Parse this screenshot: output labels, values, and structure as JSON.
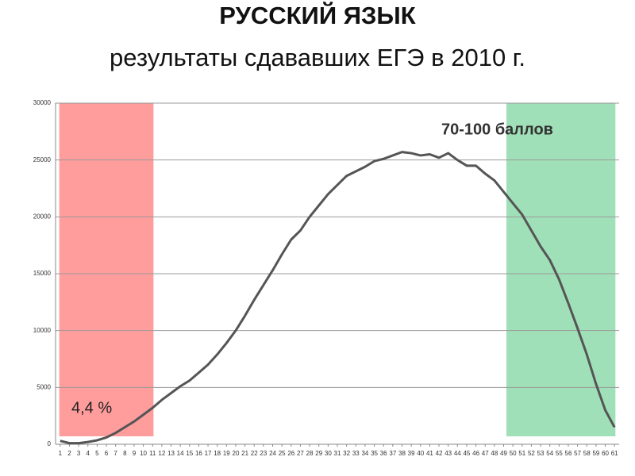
{
  "chart_data": {
    "type": "line",
    "title": "РУССКИЙ ЯЗЫК",
    "subtitle": "результаты сдававших ЕГЭ в 2010 г.",
    "x": [
      1,
      2,
      3,
      4,
      5,
      6,
      7,
      8,
      9,
      10,
      11,
      12,
      13,
      14,
      15,
      16,
      17,
      18,
      19,
      20,
      21,
      22,
      23,
      24,
      25,
      26,
      27,
      28,
      29,
      30,
      31,
      32,
      33,
      34,
      35,
      36,
      37,
      38,
      39,
      40,
      41,
      42,
      43,
      44,
      45,
      46,
      47,
      48,
      49,
      50,
      51,
      52,
      53,
      54,
      55,
      56,
      57,
      58,
      59,
      60,
      61
    ],
    "values": [
      300,
      100,
      100,
      200,
      350,
      600,
      1000,
      1500,
      2000,
      2600,
      3200,
      3900,
      4500,
      5100,
      5600,
      6300,
      7000,
      7900,
      8900,
      10000,
      11300,
      12700,
      14000,
      15300,
      16700,
      18000,
      18800,
      20000,
      21000,
      22000,
      22800,
      23600,
      24000,
      24400,
      24900,
      25100,
      25400,
      25700,
      25600,
      25400,
      25500,
      25200,
      25600,
      25000,
      24500,
      24500,
      23800,
      23200,
      22200,
      21200,
      20200,
      18800,
      17400,
      16200,
      14500,
      12400,
      10200,
      7900,
      5300,
      3000,
      1500
    ],
    "color": "#555555",
    "xlim": [
      0.5,
      61.5
    ],
    "xticks": [
      1,
      2,
      3,
      4,
      5,
      6,
      7,
      8,
      9,
      10,
      11,
      12,
      13,
      14,
      15,
      16,
      17,
      18,
      19,
      20,
      21,
      22,
      23,
      24,
      25,
      26,
      27,
      28,
      29,
      30,
      31,
      32,
      33,
      34,
      35,
      36,
      37,
      38,
      39,
      40,
      41,
      42,
      43,
      44,
      45,
      46,
      47,
      48,
      49,
      50,
      51,
      52,
      53,
      54,
      55,
      56,
      57,
      58,
      59,
      60,
      61
    ],
    "ylim": [
      0,
      30000
    ],
    "yticks": [
      0,
      5000,
      10000,
      15000,
      20000,
      25000,
      30000
    ],
    "grid": true,
    "regions": [
      {
        "x": [
          0.9,
          11.1
        ],
        "color": "#ff9c9c"
      },
      {
        "x": [
          49.3,
          61.1
        ],
        "color": "#a0e0b8"
      }
    ],
    "annotations": [
      "4,4 %",
      "70-100 баллов"
    ]
  }
}
